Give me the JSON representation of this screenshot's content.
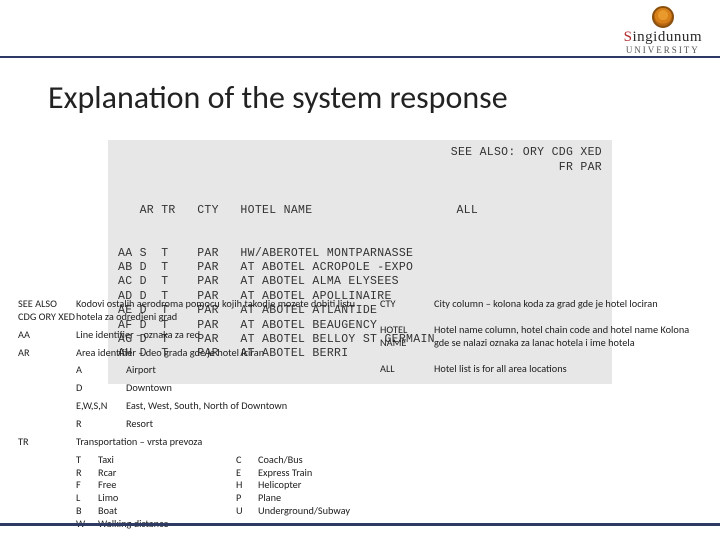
{
  "logo": {
    "word": "Singidunum",
    "sub": "University",
    "red_index": 0
  },
  "title": "Explanation of the system response",
  "terminal": {
    "see_also_label": "SEE ALSO:",
    "see_also_codes": "ORY CDG XED",
    "right_corner": "FR PAR",
    "header": "   AR TR   CTY   HOTEL NAME                    ALL",
    "rows": [
      "AA S  T    PAR   HW/ABEROTEL MONTPARNASSE",
      "AB D  T    PAR   AT ABOTEL ACROPOLE -EXPO",
      "AC D  T    PAR   AT ABOTEL ALMA ELYSEES",
      "AD D  T    PAR   AT ABOTEL APOLLINAIRE",
      "AE D  T    PAR   AT ABOTEL ATLANTIDE",
      "AF D  T    PAR   AT ABOTEL BEAUGENCY",
      "AG D  T    PAR   AT ABOTEL BELLOY ST GERMAIN",
      "AH D  T    PAR   AT ABOTEL BERRI"
    ]
  },
  "legend": {
    "left": [
      {
        "key": "SEE ALSO CDG ORY XED",
        "val": "Kodovi ostalih aerodroma pomocu kojih takodje mozete dobiti listu hotela za odredjeni grad"
      },
      {
        "key": "AA",
        "val": "Line identifier – oznaka za red"
      },
      {
        "key": "AR",
        "val": "Area identifier – deo grada gde je hotel lciran",
        "sub": [
          {
            "k": "A",
            "v": "Airport"
          },
          {
            "k": "D",
            "v": "Downtown"
          },
          {
            "k": "E,W,S,N",
            "v": "East, West, South, North of Downtown"
          },
          {
            "k": "R",
            "v": "Resort"
          }
        ]
      },
      {
        "key": "TR",
        "val": "Transportation – vrsta prevoza",
        "transport": {
          "colA": [
            {
              "c": "T",
              "v": "Taxi"
            },
            {
              "c": "R",
              "v": "Rcar"
            },
            {
              "c": "F",
              "v": "Free"
            },
            {
              "c": "L",
              "v": "Limo"
            },
            {
              "c": "B",
              "v": "Boat"
            },
            {
              "c": "W",
              "v": "Walking distance"
            }
          ],
          "colB": [
            {
              "c": "C",
              "v": "Coach/Bus"
            },
            {
              "c": "E",
              "v": "Express Train"
            },
            {
              "c": "H",
              "v": "Helicopter"
            },
            {
              "c": "P",
              "v": "Plane"
            },
            {
              "c": "U",
              "v": "Underground/Subway"
            }
          ]
        }
      }
    ],
    "right": [
      {
        "key": "CTY",
        "val": "City column – kolona koda za grad gde je hotel lociran"
      },
      {
        "key": "HOTEL NAME",
        "val": "Hotel name column, hotel chain code and hotel name Kolona gde se nalazi oznaka za lanac hotela i ime hotela"
      },
      {
        "key": "ALL",
        "val": "Hotel list is for all area locations"
      }
    ]
  },
  "colors": {
    "rule": "#2d3a63",
    "terminal_bg": "#f3f3f3",
    "logo_red": "#b02a2e"
  }
}
